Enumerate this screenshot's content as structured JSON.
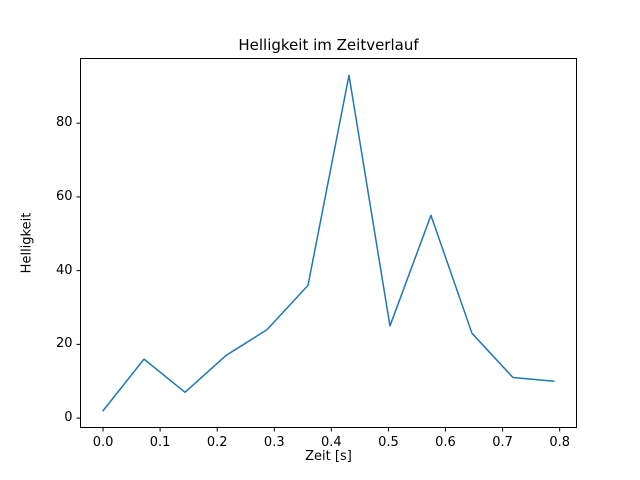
{
  "figure": {
    "background": "#ffffff",
    "frame_color": "#000000"
  },
  "chart_data": {
    "type": "line",
    "title": "Helligkeit im Zeitverlauf",
    "xlabel": "Zeit [s]",
    "ylabel": "Helligkeit",
    "line_color": "#1f77b4",
    "grid": false,
    "legend": null,
    "x": [
      0.0,
      0.0718,
      0.1436,
      0.2155,
      0.2873,
      0.3591,
      0.4309,
      0.5027,
      0.5745,
      0.6464,
      0.7182,
      0.79
    ],
    "y": [
      2,
      16,
      7,
      17,
      24,
      36,
      93,
      25,
      55,
      23,
      11,
      10
    ],
    "xlim": [
      -0.0395,
      0.8295
    ],
    "ylim": [
      -2.55,
      97.55
    ],
    "xticks": [
      0.0,
      0.1,
      0.2,
      0.3,
      0.4,
      0.5,
      0.6,
      0.7,
      0.8
    ],
    "xtick_labels": [
      "0.0",
      "0.1",
      "0.2",
      "0.3",
      "0.4",
      "0.5",
      "0.6",
      "0.7",
      "0.8"
    ],
    "yticks": [
      0,
      20,
      40,
      60,
      80
    ],
    "ytick_labels": [
      "0",
      "20",
      "40",
      "60",
      "80"
    ]
  }
}
